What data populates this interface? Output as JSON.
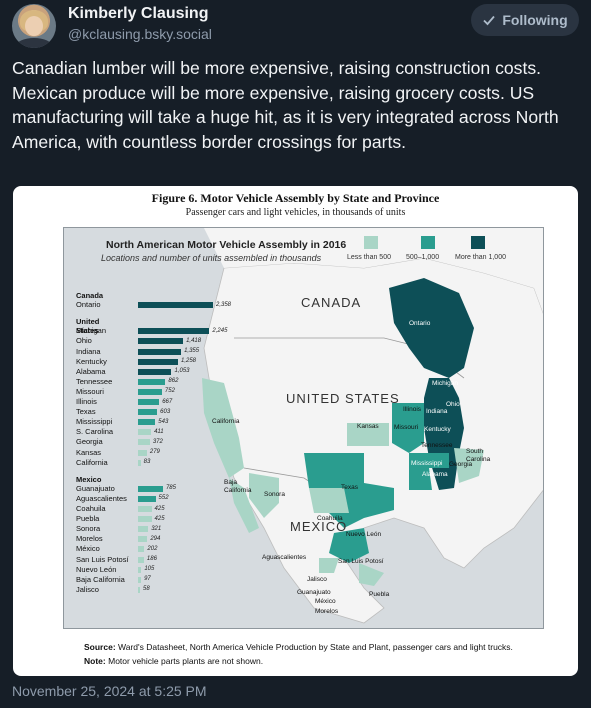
{
  "author": {
    "name": "Kimberly Clausing",
    "handle": "@kclausing.bsky.social"
  },
  "follow_button": {
    "label": "Following",
    "icon": "check-icon"
  },
  "post": {
    "text": "Canadian lumber will be more expensive, raising construction costs. Mexican produce will be more expensive, raising grocery costs. US manufacturing will take a huge hit, as it is very integrated across North America, with countless border crossings for parts."
  },
  "figure": {
    "title": "Figure 6. Motor Vehicle Assembly by State and Province",
    "subtitle": "Passenger cars and light vehicles, in thousands of units",
    "map_title": "North American Motor Vehicle Assembly in 2016",
    "map_subtitle": "Locations and number of units assembled in thousands",
    "legend": [
      {
        "label": "Less than 500",
        "color": "#a9d5c6"
      },
      {
        "label": "500–1,000",
        "color": "#2a9d8f"
      },
      {
        "label": "More than 1,000",
        "color": "#0d4f57"
      }
    ],
    "source_label": "Source:",
    "source_text": "Ward's Datasheet, North America Vehicle Production by State and Plant, passenger cars and light trucks.",
    "note_label": "Note:",
    "note_text": "Motor vehicle parts plants are not shown.",
    "country_labels": {
      "canada": "CANADA",
      "us": "UNITED STATES",
      "mexico": "MEXICO"
    },
    "map_labels": [
      "Ontario",
      "Michigan",
      "Ohio",
      "Indiana",
      "Illinois",
      "Kentucky",
      "Missouri",
      "Kansas",
      "Tennessee",
      "South Carolina",
      "Georgia",
      "Mississippi",
      "Alabama",
      "California",
      "Texas",
      "Baja California",
      "Sonora",
      "Coahuila",
      "Nuevo León",
      "San Luis Potosí",
      "Aguascalientes",
      "Jalisco",
      "Guanajuato",
      "Puebla",
      "México",
      "Morelos"
    ]
  },
  "chart_data": {
    "type": "bar",
    "title": "North American Motor Vehicle Assembly in 2016",
    "subtitle": "Locations and number of units assembled in thousands",
    "groups": [
      {
        "name": "Canada",
        "rows": [
          {
            "label": "Ontario",
            "value": 2358,
            "value_text": "2,358"
          }
        ]
      },
      {
        "name": "United States",
        "rows": [
          {
            "label": "Michigan",
            "value": 2245,
            "value_text": "2,245"
          },
          {
            "label": "Ohio",
            "value": 1418,
            "value_text": "1,418"
          },
          {
            "label": "Indiana",
            "value": 1355,
            "value_text": "1,355"
          },
          {
            "label": "Kentucky",
            "value": 1258,
            "value_text": "1,258"
          },
          {
            "label": "Alabama",
            "value": 1053,
            "value_text": "1,053"
          },
          {
            "label": "Tennessee",
            "value": 862,
            "value_text": "862"
          },
          {
            "label": "Missouri",
            "value": 752,
            "value_text": "752"
          },
          {
            "label": "Illinois",
            "value": 667,
            "value_text": "667"
          },
          {
            "label": "Texas",
            "value": 603,
            "value_text": "603"
          },
          {
            "label": "Mississippi",
            "value": 543,
            "value_text": "543"
          },
          {
            "label": "S. Carolina",
            "value": 411,
            "value_text": "411"
          },
          {
            "label": "Georgia",
            "value": 372,
            "value_text": "372"
          },
          {
            "label": "Kansas",
            "value": 279,
            "value_text": "279"
          },
          {
            "label": "California",
            "value": 83,
            "value_text": "83"
          }
        ]
      },
      {
        "name": "Mexico",
        "rows": [
          {
            "label": "Guanajuato",
            "value": 785,
            "value_text": "785"
          },
          {
            "label": "Aguascalientes",
            "value": 552,
            "value_text": "552"
          },
          {
            "label": "Coahuila",
            "value": 425,
            "value_text": "425"
          },
          {
            "label": "Puebla",
            "value": 425,
            "value_text": "425"
          },
          {
            "label": "Sonora",
            "value": 321,
            "value_text": "321"
          },
          {
            "label": "Morelos",
            "value": 294,
            "value_text": "294"
          },
          {
            "label": "México",
            "value": 202,
            "value_text": "202"
          },
          {
            "label": "San Luis Potosí",
            "value": 186,
            "value_text": "186"
          },
          {
            "label": "Nuevo León",
            "value": 105,
            "value_text": "105"
          },
          {
            "label": "Baja California",
            "value": 97,
            "value_text": "97"
          },
          {
            "label": "Jalisco",
            "value": 58,
            "value_text": "58"
          }
        ]
      }
    ],
    "thresholds": [
      500,
      1000
    ],
    "colors": {
      "low": "#a9d5c6",
      "mid": "#2a9d8f",
      "high": "#0d4f57"
    }
  },
  "timestamp": "November 25, 2024 at 5:25 PM"
}
